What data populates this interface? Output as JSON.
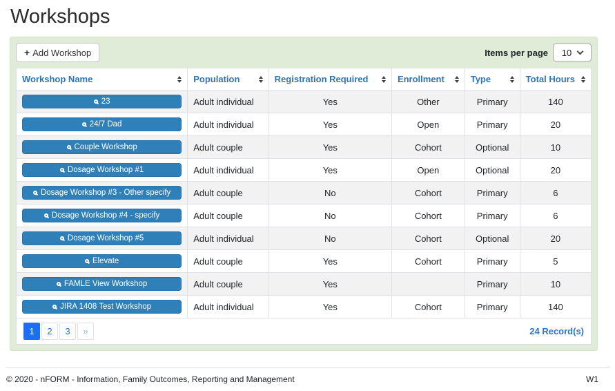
{
  "page": {
    "title": "Workshops"
  },
  "toolbar": {
    "add_button_label": "Add Workshop",
    "add_button_icon": "plus-icon",
    "items_per_page_label": "Items per page",
    "items_per_page_value": "10",
    "items_per_page_icon": "chevron-down-icon"
  },
  "table": {
    "columns": [
      {
        "key": "workshop-name",
        "label": "Workshop Name",
        "sort_icon": "sort-up-down-icon"
      },
      {
        "key": "population",
        "label": "Population",
        "sort_icon": "sort-up-down-icon"
      },
      {
        "key": "registration-required",
        "label": "Registration Required",
        "sort_icon": "sort-up-down-icon"
      },
      {
        "key": "enrollment",
        "label": "Enrollment",
        "sort_icon": "sort-up-down-icon"
      },
      {
        "key": "type",
        "label": "Type",
        "sort_icon": "sort-up-down-icon"
      },
      {
        "key": "total-hours",
        "label": "Total Hours",
        "sort_icon": "sort-up-down-icon"
      }
    ],
    "row_button_icon": "magnifier-icon",
    "rows": [
      {
        "name": "23",
        "population": "Adult individual",
        "registration_required": "Yes",
        "enrollment": "Other",
        "type": "Primary",
        "total_hours": "140"
      },
      {
        "name": "24/7 Dad",
        "population": "Adult individual",
        "registration_required": "Yes",
        "enrollment": "Open",
        "type": "Primary",
        "total_hours": "20"
      },
      {
        "name": "Couple Workshop",
        "population": "Adult couple",
        "registration_required": "Yes",
        "enrollment": "Cohort",
        "type": "Optional",
        "total_hours": "10"
      },
      {
        "name": "Dosage Workshop #1",
        "population": "Adult individual",
        "registration_required": "Yes",
        "enrollment": "Open",
        "type": "Optional",
        "total_hours": "20"
      },
      {
        "name": "Dosage Workshop #3 - Other specify",
        "population": "Adult couple",
        "registration_required": "No",
        "enrollment": "Cohort",
        "type": "Primary",
        "total_hours": "6"
      },
      {
        "name": "Dosage Workshop #4 - specify",
        "population": "Adult couple",
        "registration_required": "No",
        "enrollment": "Cohort",
        "type": "Primary",
        "total_hours": "6"
      },
      {
        "name": "Dosage Workshop #5",
        "population": "Adult individual",
        "registration_required": "No",
        "enrollment": "Cohort",
        "type": "Optional",
        "total_hours": "20"
      },
      {
        "name": "Elevate",
        "population": "Adult couple",
        "registration_required": "Yes",
        "enrollment": "Cohort",
        "type": "Primary",
        "total_hours": "5"
      },
      {
        "name": "FAMLE View Workshop",
        "population": "Adult couple",
        "registration_required": "Yes",
        "enrollment": "",
        "type": "Primary",
        "total_hours": "10"
      },
      {
        "name": "JIRA 1408 Test Workshop",
        "population": "Adult individual",
        "registration_required": "Yes",
        "enrollment": "Cohort",
        "type": "Primary",
        "total_hours": "140"
      }
    ]
  },
  "pagination": {
    "pages": [
      "1",
      "2",
      "3"
    ],
    "active_page": "1",
    "next_label": "»",
    "record_count": "24 Record(s)"
  },
  "footer": {
    "copyright": "© 2020 - nFORM - Information, Family Outcomes, Reporting and Management",
    "version": "W1"
  },
  "colors": {
    "panel_green": "#e0ebd8",
    "header_link_blue": "#2a76b9",
    "row_button_blue": "#2f80b9",
    "pagination_active_blue": "#1b6ff2",
    "stripe_gray": "#f2f2f2",
    "border_gray": "#dee2e6"
  }
}
